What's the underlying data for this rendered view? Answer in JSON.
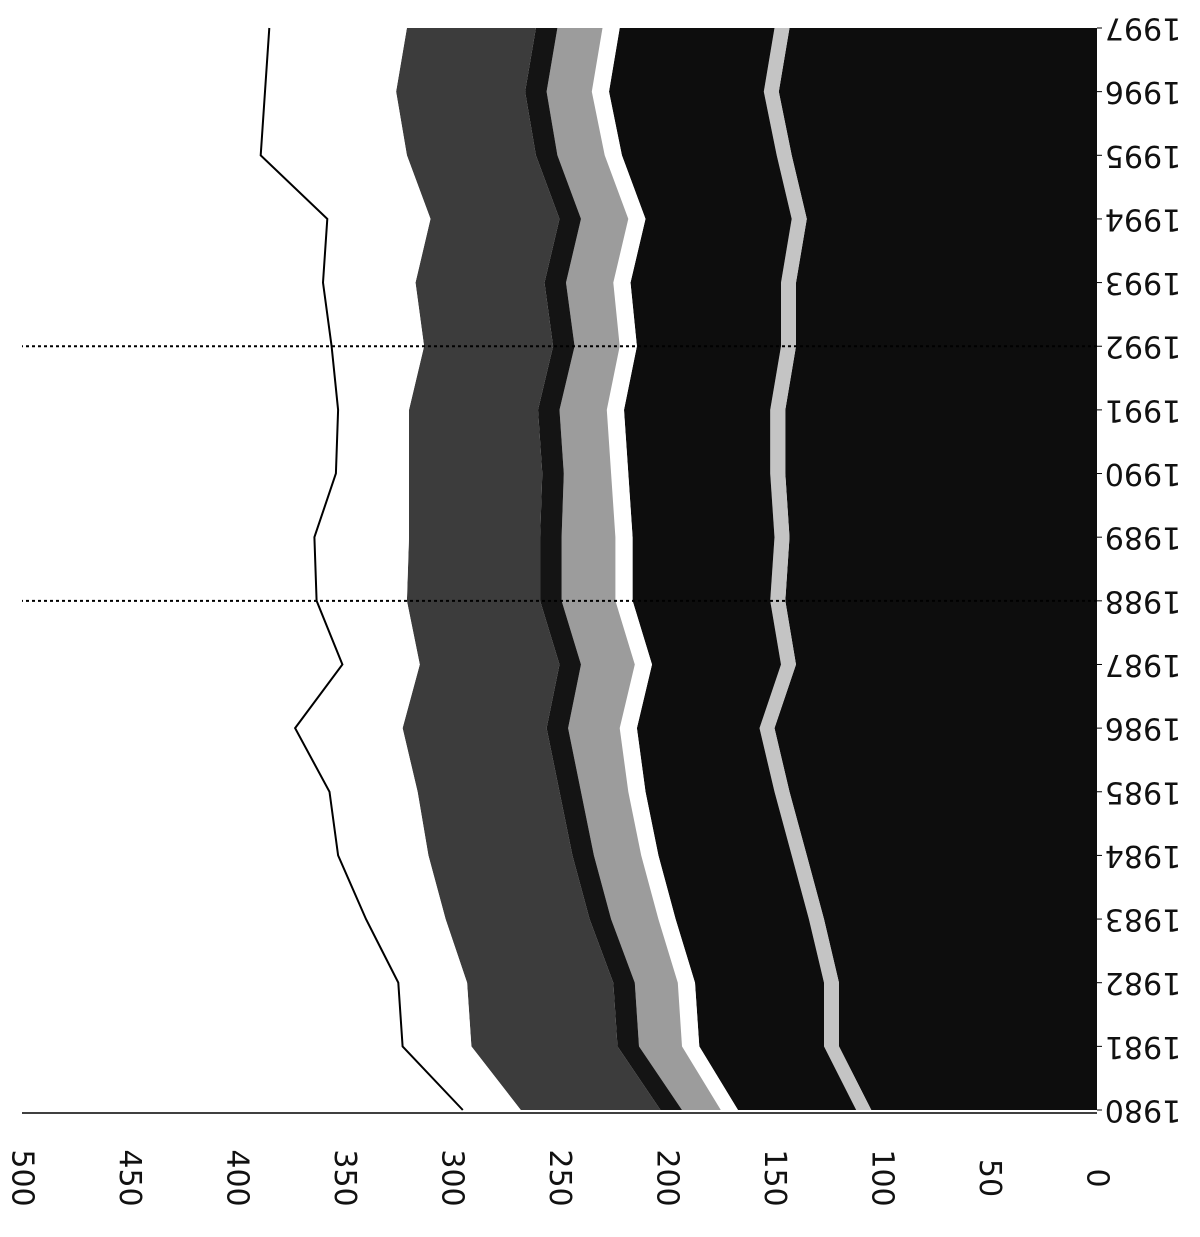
{
  "chart_data": {
    "type": "area",
    "stacked": true,
    "orientation": "rotated",
    "x": [
      "1980",
      "1981",
      "1982",
      "1983",
      "1984",
      "1985",
      "1986",
      "1987",
      "1988",
      "1989",
      "1990",
      "1991",
      "1992",
      "1993",
      "1994",
      "1995",
      "1996",
      "1997"
    ],
    "x_tick_labels": [
      "1980",
      "1981",
      "1982",
      "1983",
      "1984",
      "1985",
      "1986",
      "1987",
      "1988",
      "1989",
      "1990",
      "1991",
      "1992",
      "1993",
      "1994",
      "1995",
      "1996",
      "1997"
    ],
    "y_tick_labels": [
      "0",
      "50",
      "100",
      "150",
      "200",
      "250",
      "300",
      "350",
      "400",
      "450",
      "500"
    ],
    "ylim": [
      0,
      500
    ],
    "grid": false,
    "reference_lines_at": [
      "1988",
      "1992"
    ],
    "title": "",
    "xlabel": "",
    "ylabel": "",
    "series": [
      {
        "values": [
          105,
          120,
          120,
          127,
          135,
          143,
          150,
          140,
          145,
          143,
          145,
          145,
          140,
          140,
          135,
          142,
          148,
          143
        ],
        "color": "#0d0d0d"
      },
      {
        "values": [
          7,
          7,
          7,
          7,
          7,
          7,
          7,
          7,
          7,
          7,
          7,
          7,
          7,
          7,
          7,
          7,
          7,
          7
        ],
        "color": "#c4c4c4"
      },
      {
        "values": [
          55,
          58,
          60,
          62,
          62,
          60,
          57,
          60,
          64,
          66,
          66,
          68,
          67,
          70,
          68,
          72,
          72,
          72
        ],
        "color": "#0d0d0d"
      },
      {
        "values": [
          8,
          8,
          8,
          8,
          8,
          8,
          8,
          8,
          8,
          8,
          8,
          8,
          8,
          8,
          8,
          8,
          8,
          8
        ],
        "color": "#ffffff"
      },
      {
        "values": [
          18,
          20,
          20,
          22,
          22,
          22,
          24,
          25,
          25,
          25,
          22,
          22,
          21,
          22,
          22,
          22,
          21,
          21
        ],
        "color": "#9c9c9c"
      },
      {
        "values": [
          10,
          10,
          10,
          10,
          10,
          10,
          10,
          10,
          10,
          10,
          10,
          10,
          10,
          10,
          10,
          10,
          10,
          10
        ],
        "color": "#141414"
      },
      {
        "values": [
          65,
          68,
          68,
          67,
          67,
          66,
          67,
          65,
          62,
          61,
          62,
          60,
          60,
          60,
          60,
          60,
          60,
          60
        ],
        "color": "#3c3c3c"
      },
      {
        "values": [
          27,
          32,
          32,
          37,
          42,
          41,
          50,
          36,
          42,
          44,
          34,
          33,
          43,
          43,
          48,
          68,
          61,
          64
        ],
        "color": "#ffffff",
        "outline": true
      }
    ]
  }
}
